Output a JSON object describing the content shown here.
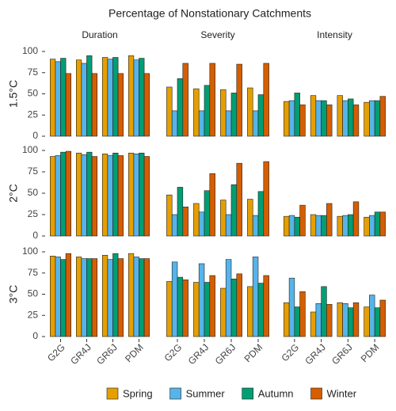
{
  "chart_data": {
    "type": "bar",
    "title": "Percentage of Nonstationary Catchments",
    "column_labels": [
      "Duration",
      "Severity",
      "Intensity"
    ],
    "row_labels": [
      "1.5°C",
      "2°C",
      "3°C"
    ],
    "categories": [
      "G2G",
      "GR4J",
      "GR6J",
      "PDM"
    ],
    "series": [
      {
        "name": "Spring",
        "color": "#e69f00"
      },
      {
        "name": "Summer",
        "color": "#56b4e9"
      },
      {
        "name": "Autumn",
        "color": "#009e73"
      },
      {
        "name": "Winter",
        "color": "#d55e00"
      }
    ],
    "ylim": [
      0,
      100
    ],
    "yticks": [
      0,
      25,
      50,
      75,
      100
    ],
    "panels": [
      {
        "series": [
          [
            91,
            90,
            93,
            95
          ],
          [
            88,
            86,
            91,
            90
          ],
          [
            92,
            95,
            93,
            92
          ],
          [
            74,
            74,
            74,
            74
          ]
        ]
      },
      {
        "series": [
          [
            58,
            56,
            55,
            57
          ],
          [
            30,
            30,
            30,
            30
          ],
          [
            68,
            60,
            51,
            49
          ],
          [
            86,
            86,
            85,
            86
          ]
        ]
      },
      {
        "series": [
          [
            41,
            48,
            48,
            40
          ],
          [
            42,
            42,
            42,
            42
          ],
          [
            51,
            42,
            44,
            42
          ],
          [
            37,
            37,
            37,
            47
          ]
        ]
      },
      {
        "series": [
          [
            93,
            97,
            96,
            97
          ],
          [
            94,
            95,
            94,
            96
          ],
          [
            98,
            98,
            97,
            97
          ],
          [
            99,
            93,
            94,
            93
          ]
        ]
      },
      {
        "series": [
          [
            48,
            38,
            42,
            43
          ],
          [
            25,
            28,
            25,
            24
          ],
          [
            57,
            53,
            60,
            52
          ],
          [
            34,
            73,
            85,
            87
          ]
        ]
      },
      {
        "series": [
          [
            23,
            25,
            23,
            22
          ],
          [
            24,
            24,
            24,
            24
          ],
          [
            22,
            24,
            25,
            28
          ],
          [
            36,
            38,
            40,
            28
          ]
        ]
      },
      {
        "series": [
          [
            95,
            94,
            96,
            98
          ],
          [
            94,
            92,
            91,
            94
          ],
          [
            91,
            92,
            98,
            92
          ],
          [
            98,
            92,
            92,
            92
          ]
        ]
      },
      {
        "series": [
          [
            65,
            64,
            57,
            59
          ],
          [
            88,
            86,
            91,
            94
          ],
          [
            70,
            64,
            68,
            63
          ],
          [
            67,
            72,
            74,
            72
          ]
        ]
      },
      {
        "series": [
          [
            40,
            29,
            40,
            35
          ],
          [
            69,
            39,
            39,
            49
          ],
          [
            35,
            59,
            34,
            34
          ],
          [
            53,
            38,
            40,
            43
          ]
        ]
      }
    ]
  }
}
